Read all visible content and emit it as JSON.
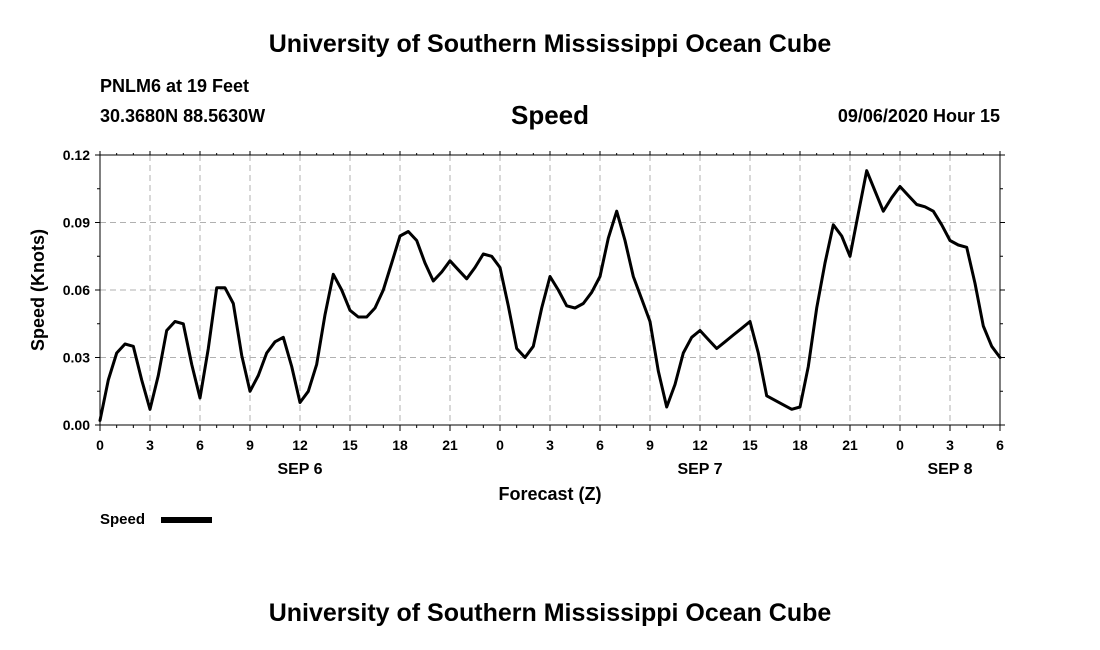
{
  "header": {
    "title": "University of Southern Mississippi Ocean Cube",
    "station": "PNLM6 at 19 Feet",
    "coords": "30.3680N 88.5630W",
    "variable": "Speed",
    "datetime": "09/06/2020 Hour 15"
  },
  "footer": {
    "title": "University of Southern Mississippi Ocean Cube"
  },
  "chart_data": {
    "type": "line",
    "title": "Speed",
    "xlabel": "Forecast (Z)",
    "ylabel": "Speed (Knots)",
    "ylim": [
      0,
      0.12
    ],
    "xlim": [
      0,
      54
    ],
    "grid": true,
    "legend_position": "bottom-left",
    "y_ticks": [
      "0.00",
      "0.03",
      "0.06",
      "0.09",
      "0.12"
    ],
    "x_ticks": [
      {
        "x": 0,
        "label": "0"
      },
      {
        "x": 3,
        "label": "3"
      },
      {
        "x": 6,
        "label": "6"
      },
      {
        "x": 9,
        "label": "9"
      },
      {
        "x": 12,
        "label": "12"
      },
      {
        "x": 15,
        "label": "15"
      },
      {
        "x": 18,
        "label": "18"
      },
      {
        "x": 21,
        "label": "21"
      },
      {
        "x": 24,
        "label": "0"
      },
      {
        "x": 27,
        "label": "3"
      },
      {
        "x": 30,
        "label": "6"
      },
      {
        "x": 33,
        "label": "9"
      },
      {
        "x": 36,
        "label": "12"
      },
      {
        "x": 39,
        "label": "15"
      },
      {
        "x": 42,
        "label": "18"
      },
      {
        "x": 45,
        "label": "21"
      },
      {
        "x": 48,
        "label": "0"
      },
      {
        "x": 51,
        "label": "3"
      },
      {
        "x": 54,
        "label": "6"
      }
    ],
    "date_labels": [
      {
        "x": 12,
        "label": "SEP 6"
      },
      {
        "x": 36,
        "label": "SEP 7"
      },
      {
        "x": 51,
        "label": "SEP 8"
      }
    ],
    "series": [
      {
        "name": "Speed",
        "color": "#000000",
        "x": [
          0,
          0.5,
          1,
          1.5,
          2,
          2.5,
          3,
          3.5,
          4,
          4.5,
          5,
          5.5,
          6,
          6.5,
          7,
          7.5,
          8,
          8.5,
          9,
          9.5,
          10,
          10.5,
          11,
          11.5,
          12,
          12.5,
          13,
          13.5,
          14,
          14.5,
          15,
          15.5,
          16,
          16.5,
          17,
          17.5,
          18,
          18.5,
          19,
          19.5,
          20,
          20.5,
          21,
          21.5,
          22,
          22.5,
          23,
          23.5,
          24,
          24.5,
          25,
          25.5,
          26,
          26.5,
          27,
          27.5,
          28,
          28.5,
          29,
          29.5,
          30,
          30.5,
          31,
          31.5,
          32,
          32.5,
          33,
          33.5,
          34,
          34.5,
          35,
          35.5,
          36,
          36.5,
          37,
          37.5,
          38,
          38.5,
          39,
          39.5,
          40,
          40.5,
          41,
          41.5,
          42,
          42.5,
          43,
          43.5,
          44,
          44.5,
          45,
          45.5,
          46,
          46.5,
          47,
          47.5,
          48,
          48.5,
          49,
          49.5,
          50,
          50.5,
          51,
          51.5,
          52,
          52.5,
          53,
          53.5,
          54
        ],
        "values": [
          0.002,
          0.02,
          0.032,
          0.036,
          0.035,
          0.02,
          0.007,
          0.022,
          0.042,
          0.046,
          0.045,
          0.027,
          0.012,
          0.034,
          0.061,
          0.061,
          0.054,
          0.031,
          0.015,
          0.022,
          0.032,
          0.037,
          0.039,
          0.026,
          0.01,
          0.015,
          0.027,
          0.049,
          0.067,
          0.06,
          0.051,
          0.048,
          0.048,
          0.052,
          0.06,
          0.072,
          0.084,
          0.086,
          0.082,
          0.072,
          0.064,
          0.068,
          0.073,
          0.069,
          0.065,
          0.07,
          0.076,
          0.075,
          0.07,
          0.053,
          0.034,
          0.03,
          0.035,
          0.052,
          0.066,
          0.06,
          0.053,
          0.052,
          0.054,
          0.059,
          0.066,
          0.083,
          0.095,
          0.082,
          0.066,
          0.056,
          0.046,
          0.024,
          0.008,
          0.018,
          0.032,
          0.039,
          0.042,
          0.038,
          0.034,
          0.037,
          0.04,
          0.043,
          0.046,
          0.032,
          0.013,
          0.011,
          0.009,
          0.007,
          0.008,
          0.026,
          0.052,
          0.072,
          0.089,
          0.084,
          0.075,
          0.094,
          0.113,
          0.104,
          0.095,
          0.101,
          0.106,
          0.102,
          0.098,
          0.097,
          0.095,
          0.089,
          0.082,
          0.08,
          0.079,
          0.063,
          0.044,
          0.035,
          0.03
        ]
      }
    ]
  }
}
